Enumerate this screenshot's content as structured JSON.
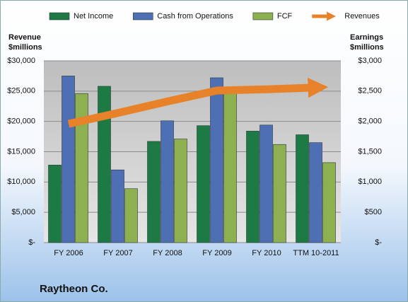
{
  "chart_data": {
    "type": "bar",
    "title": "Raytheon Co.",
    "y_label": "Revenue $millions",
    "y2_label": "Earnings $millions",
    "categories": [
      "FY 2006",
      "FY 2007",
      "FY 2008",
      "FY 2009",
      "FY 2010",
      "TTM 10-2011"
    ],
    "series": [
      {
        "name": "Net Income",
        "color": "#1e7a45",
        "axis": "y2",
        "type": "bar",
        "values": [
          1280,
          2580,
          1670,
          1930,
          1840,
          1780
        ]
      },
      {
        "name": "Cash from Operations",
        "color": "#4f6fb5",
        "axis": "y2",
        "type": "bar",
        "values": [
          2750,
          1200,
          2010,
          2720,
          1940,
          1650
        ]
      },
      {
        "name": "FCF",
        "color": "#8fb050",
        "axis": "y2",
        "type": "bar",
        "values": [
          2460,
          890,
          1710,
          2470,
          1620,
          1320
        ]
      },
      {
        "name": "Revenues",
        "color": "#e8822a",
        "axis": "y",
        "type": "line",
        "values": [
          19600,
          21400,
          23300,
          25100,
          25300,
          25600
        ]
      }
    ],
    "ylim": [
      0,
      30000
    ],
    "yticks": [
      {
        "value": 0,
        "label": "$-"
      },
      {
        "value": 5000,
        "label": "$5,000"
      },
      {
        "value": 10000,
        "label": "$10,000"
      },
      {
        "value": 15000,
        "label": "$15,000"
      },
      {
        "value": 20000,
        "label": "$20,000"
      },
      {
        "value": 25000,
        "label": "$25,000"
      },
      {
        "value": 30000,
        "label": "$30,000"
      }
    ],
    "y2lim": [
      0,
      3000
    ],
    "y2ticks": [
      {
        "value": 0,
        "label": "$-"
      },
      {
        "value": 500,
        "label": "$500"
      },
      {
        "value": 1000,
        "label": "$1,000"
      },
      {
        "value": 1500,
        "label": "$1,500"
      },
      {
        "value": 2000,
        "label": "$2,000"
      },
      {
        "value": 2500,
        "label": "$2,500"
      },
      {
        "value": 3000,
        "label": "$3,000"
      }
    ],
    "grid": true
  }
}
